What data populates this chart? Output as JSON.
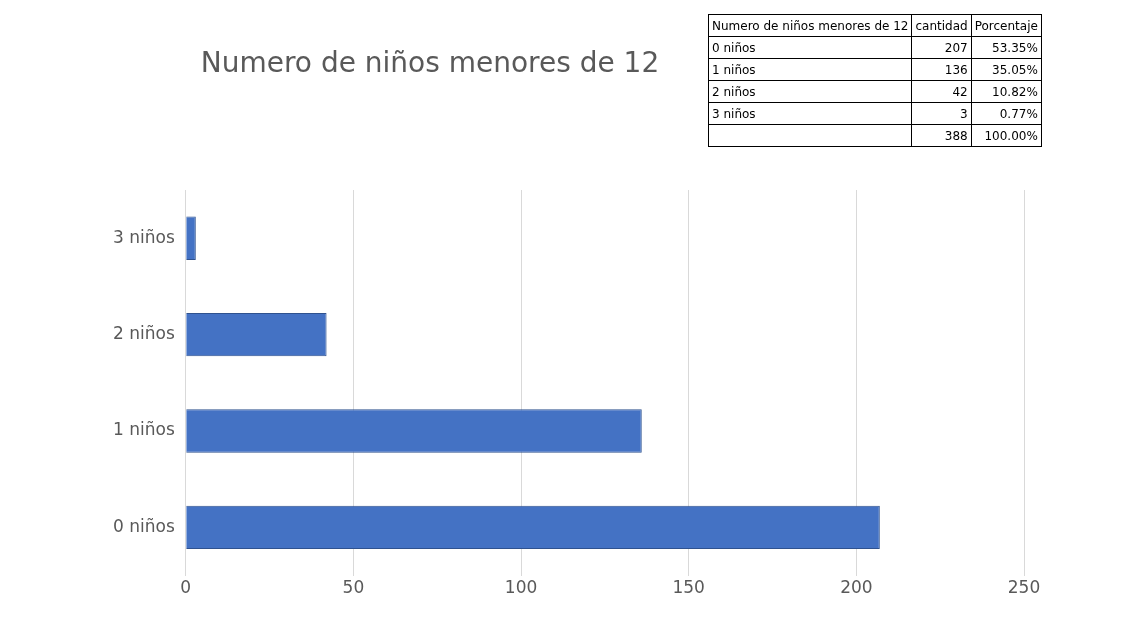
{
  "chart_data": {
    "type": "bar",
    "orientation": "horizontal",
    "title": "Numero de niños menores de 12",
    "categories": [
      "3 niños",
      "2 niños",
      "1 niños",
      "0 niños"
    ],
    "values": [
      3,
      42,
      136,
      207
    ],
    "color": "#4472c4",
    "xlim": [
      0,
      250
    ],
    "xticks": [
      0,
      50,
      100,
      150,
      200,
      250
    ],
    "grid": "x",
    "annotations": [
      "Numero de niños menores de 12",
      "cantidad",
      "Porcentaje",
      "207",
      "53.35%",
      "136",
      "35.05%",
      "42",
      "10.82%",
      "3",
      "0.77%",
      "388",
      "100.00%"
    ]
  }
}
